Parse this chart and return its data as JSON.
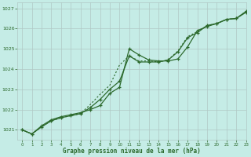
{
  "title": "Graphe pression niveau de la mer (hPa)",
  "bg_color": "#c5ece6",
  "grid_color": "#b0c8c4",
  "line_color": "#2d6a2d",
  "xlim": [
    -0.5,
    23
  ],
  "ylim": [
    1020.5,
    1027.3
  ],
  "yticks": [
    1021,
    1022,
    1023,
    1024,
    1025,
    1026,
    1027
  ],
  "xticks": [
    0,
    1,
    2,
    3,
    4,
    5,
    6,
    7,
    8,
    9,
    10,
    11,
    12,
    13,
    14,
    15,
    16,
    17,
    18,
    19,
    20,
    21,
    22,
    23
  ],
  "series1_x": [
    0,
    1,
    2,
    3,
    4,
    5,
    6,
    7,
    8,
    9,
    10,
    11,
    12,
    13,
    14,
    15,
    16,
    17,
    18,
    19,
    20,
    21,
    22,
    23
  ],
  "series1_y": [
    1021.0,
    1020.8,
    1021.2,
    1021.5,
    1021.65,
    1021.75,
    1021.85,
    1022.0,
    1022.2,
    1022.8,
    1023.1,
    1025.0,
    1024.7,
    1024.45,
    1024.4,
    1024.4,
    1024.5,
    1025.1,
    1025.9,
    1026.1,
    1026.25,
    1026.45,
    1026.5,
    1026.8
  ],
  "series2_x": [
    0,
    1,
    2,
    3,
    4,
    5,
    6,
    7,
    8,
    9,
    10,
    11,
    12,
    13,
    14,
    15,
    16,
    17,
    18,
    19,
    20,
    21,
    22,
    23
  ],
  "series2_y": [
    1021.0,
    1020.8,
    1021.15,
    1021.45,
    1021.6,
    1021.7,
    1021.8,
    1022.25,
    1022.75,
    1023.2,
    1024.2,
    1024.65,
    1024.4,
    1024.4,
    1024.35,
    1024.45,
    1024.9,
    1025.6,
    1025.85,
    1026.15,
    1026.25,
    1026.45,
    1026.5,
    1026.85
  ],
  "series3_x": [
    0,
    1,
    2,
    3,
    4,
    5,
    6,
    7,
    8,
    9,
    10,
    11,
    12,
    13,
    14,
    15,
    16,
    17,
    18,
    19,
    20,
    21,
    22,
    23
  ],
  "series3_y": [
    1021.0,
    1020.8,
    1021.15,
    1021.45,
    1021.6,
    1021.7,
    1021.8,
    1022.1,
    1022.5,
    1023.0,
    1023.4,
    1024.65,
    1024.35,
    1024.35,
    1024.35,
    1024.45,
    1024.85,
    1025.55,
    1025.8,
    1026.15,
    1026.25,
    1026.45,
    1026.5,
    1026.85
  ]
}
